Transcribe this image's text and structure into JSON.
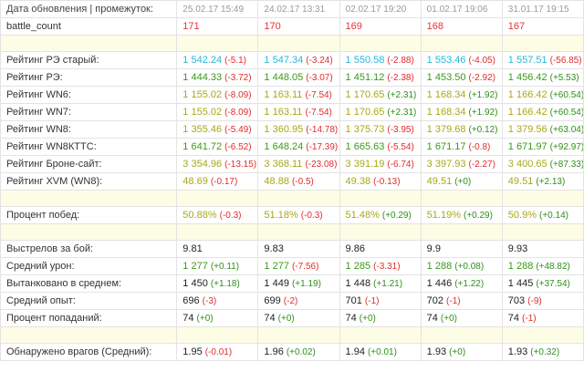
{
  "columns": {
    "label": "Дата обновления | промежуток:",
    "dates": [
      "25.02.17 15:49",
      "24.02.17 13:31",
      "02.02.17 19:20",
      "01.02.17 19:06",
      "31.01.17 19:15"
    ]
  },
  "colors": {
    "black": "#222222",
    "red": "#e8303a",
    "cyan": "#28b7d6",
    "green": "#3a9a1a",
    "olive": "#a9a817",
    "delta_pos": "#2f8f1a",
    "delta_neg": "#e02c2c",
    "separator": "#fdfde6",
    "grid": "#e3e3e3"
  },
  "rows": [
    {
      "label": "battle_count",
      "color": "red",
      "cells": [
        {
          "v": "171",
          "d": ""
        },
        {
          "v": "170",
          "d": ""
        },
        {
          "v": "169",
          "d": ""
        },
        {
          "v": "168",
          "d": ""
        },
        {
          "v": "167",
          "d": ""
        }
      ]
    },
    {
      "separator": true
    },
    {
      "label": "Рейтинг РЭ старый:",
      "color": "cyan",
      "cells": [
        {
          "v": "1 542.24",
          "d": "(-5.1)"
        },
        {
          "v": "1 547.34",
          "d": "(-3.24)"
        },
        {
          "v": "1 550.58",
          "d": "(-2.88)"
        },
        {
          "v": "1 553.46",
          "d": "(-4.05)"
        },
        {
          "v": "1 557.51",
          "d": "(-56.85)"
        }
      ]
    },
    {
      "label": "Рейтинг РЭ:",
      "color": "green",
      "cells": [
        {
          "v": "1 444.33",
          "d": "(-3.72)"
        },
        {
          "v": "1 448.05",
          "d": "(-3.07)"
        },
        {
          "v": "1 451.12",
          "d": "(-2.38)"
        },
        {
          "v": "1 453.50",
          "d": "(-2.92)"
        },
        {
          "v": "1 456.42",
          "d": "(+5.53)"
        }
      ]
    },
    {
      "label": "Рейтинг WN6:",
      "color": "olive",
      "cells": [
        {
          "v": "1 155.02",
          "d": "(-8.09)"
        },
        {
          "v": "1 163.11",
          "d": "(-7.54)"
        },
        {
          "v": "1 170.65",
          "d": "(+2.31)"
        },
        {
          "v": "1 168.34",
          "d": "(+1.92)"
        },
        {
          "v": "1 166.42",
          "d": "(+60.54)"
        }
      ]
    },
    {
      "label": "Рейтинг WN7:",
      "color": "olive",
      "cells": [
        {
          "v": "1 155.02",
          "d": "(-8.09)"
        },
        {
          "v": "1 163.11",
          "d": "(-7.54)"
        },
        {
          "v": "1 170.65",
          "d": "(+2.31)"
        },
        {
          "v": "1 168.34",
          "d": "(+1.92)"
        },
        {
          "v": "1 166.42",
          "d": "(+60.54)"
        }
      ]
    },
    {
      "label": "Рейтинг WN8:",
      "color": "olive",
      "cells": [
        {
          "v": "1 355.46",
          "d": "(-5.49)"
        },
        {
          "v": "1 360.95",
          "d": "(-14.78)"
        },
        {
          "v": "1 375.73",
          "d": "(-3.95)"
        },
        {
          "v": "1 379.68",
          "d": "(+0.12)"
        },
        {
          "v": "1 379.56",
          "d": "(+63.04)"
        }
      ]
    },
    {
      "label": "Рейтинг WN8КТТС:",
      "color": "green",
      "cells": [
        {
          "v": "1 641.72",
          "d": "(-6.52)"
        },
        {
          "v": "1 648.24",
          "d": "(-17.39)"
        },
        {
          "v": "1 665.63",
          "d": "(-5.54)"
        },
        {
          "v": "1 671.17",
          "d": "(-0.8)"
        },
        {
          "v": "1 671.97",
          "d": "(+92.97)"
        }
      ]
    },
    {
      "label": "Рейтинг Броне-сайт:",
      "color": "olive",
      "cells": [
        {
          "v": "3 354.96",
          "d": "(-13.15)"
        },
        {
          "v": "3 368.11",
          "d": "(-23.08)"
        },
        {
          "v": "3 391.19",
          "d": "(-6.74)"
        },
        {
          "v": "3 397.93",
          "d": "(-2.27)"
        },
        {
          "v": "3 400.65",
          "d": "(+87.33)"
        }
      ]
    },
    {
      "label": "Рейтинг XVM (WN8):",
      "color": "olive",
      "cells": [
        {
          "v": "48.69",
          "d": "(-0.17)"
        },
        {
          "v": "48.88",
          "d": "(-0.5)"
        },
        {
          "v": "49.38",
          "d": "(-0.13)"
        },
        {
          "v": "49.51",
          "d": "(+0)"
        },
        {
          "v": "49.51",
          "d": "(+2.13)"
        }
      ]
    },
    {
      "separator": true
    },
    {
      "label": "Процент побед:",
      "color": "olive",
      "cells": [
        {
          "v": "50.88%",
          "d": "(-0.3)"
        },
        {
          "v": "51.18%",
          "d": "(-0.3)"
        },
        {
          "v": "51.48%",
          "d": "(+0.29)"
        },
        {
          "v": "51.19%",
          "d": "(+0.29)"
        },
        {
          "v": "50.9%",
          "d": "(+0.14)"
        }
      ]
    },
    {
      "separator": true
    },
    {
      "label": "Выстрелов за бой:",
      "color": "black",
      "cells": [
        {
          "v": "9.81",
          "d": ""
        },
        {
          "v": "9.83",
          "d": ""
        },
        {
          "v": "9.86",
          "d": ""
        },
        {
          "v": "9.9",
          "d": ""
        },
        {
          "v": "9.93",
          "d": ""
        }
      ]
    },
    {
      "label": "Средний урон:",
      "color": "green",
      "cells": [
        {
          "v": "1 277",
          "d": "(+0.11)"
        },
        {
          "v": "1 277",
          "d": "(-7.56)"
        },
        {
          "v": "1 285",
          "d": "(-3.31)"
        },
        {
          "v": "1 288",
          "d": "(+0.08)"
        },
        {
          "v": "1 288",
          "d": "(+48.82)"
        }
      ]
    },
    {
      "label": "Вытанковано в среднем:",
      "color": "black",
      "cells": [
        {
          "v": "1 450",
          "d": "(+1.18)"
        },
        {
          "v": "1 449",
          "d": "(+1.19)"
        },
        {
          "v": "1 448",
          "d": "(+1.21)"
        },
        {
          "v": "1 446",
          "d": "(+1.22)"
        },
        {
          "v": "1 445",
          "d": "(+37.54)"
        }
      ]
    },
    {
      "label": "Средний опыт:",
      "color": "black",
      "cells": [
        {
          "v": "696",
          "d": "(-3)"
        },
        {
          "v": "699",
          "d": "(-2)"
        },
        {
          "v": "701",
          "d": "(-1)"
        },
        {
          "v": "702",
          "d": "(-1)"
        },
        {
          "v": "703",
          "d": "(-9)"
        }
      ]
    },
    {
      "label": "Процент попаданий:",
      "color": "black",
      "cells": [
        {
          "v": "74",
          "d": "(+0)"
        },
        {
          "v": "74",
          "d": "(+0)"
        },
        {
          "v": "74",
          "d": "(+0)"
        },
        {
          "v": "74",
          "d": "(+0)"
        },
        {
          "v": "74",
          "d": "(-1)"
        }
      ]
    },
    {
      "separator": true
    },
    {
      "label": "Обнаружено врагов (Средний):",
      "color": "black",
      "cells": [
        {
          "v": "1.95",
          "d": "(-0.01)"
        },
        {
          "v": "1.96",
          "d": "(+0.02)"
        },
        {
          "v": "1.94",
          "d": "(+0.01)"
        },
        {
          "v": "1.93",
          "d": "(+0)"
        },
        {
          "v": "1.93",
          "d": "(+0.32)"
        }
      ]
    }
  ]
}
